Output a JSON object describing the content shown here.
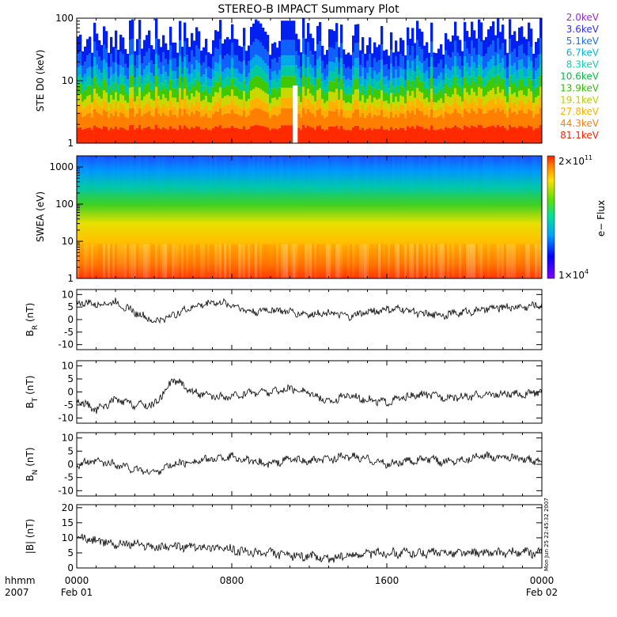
{
  "title": "STEREO-B IMPACT Summary Plot",
  "chart_data": [
    {
      "type": "heatmap",
      "id": "ste",
      "ylabel": "STE D0 (keV)",
      "yscale": "log",
      "ylim": [
        1,
        100
      ],
      "yticks": [
        "1",
        "10",
        "100"
      ],
      "legend": {
        "placement": "right",
        "entries": [
          {
            "label": "2.0keV",
            "color": "#a020f0"
          },
          {
            "label": "3.6keV",
            "color": "#3030ff"
          },
          {
            "label": "5.1keV",
            "color": "#1070ff"
          },
          {
            "label": "6.7keV",
            "color": "#00b8e0"
          },
          {
            "label": "8.3keV",
            "color": "#10d0b0"
          },
          {
            "label": "10.6keV",
            "color": "#00c040"
          },
          {
            "label": "13.9keV",
            "color": "#30c000"
          },
          {
            "label": "19.1keV",
            "color": "#b8d000"
          },
          {
            "label": "27.8keV",
            "color": "#ffb000"
          },
          {
            "label": "44.3keV",
            "color": "#ff8000"
          },
          {
            "label": "81.1keV",
            "color": "#ff2000"
          }
        ]
      }
    },
    {
      "type": "heatmap",
      "id": "swea",
      "ylabel": "SWEA (eV)",
      "yscale": "log",
      "ylim": [
        1,
        2000
      ],
      "yticks": [
        "1",
        "10",
        "100",
        "1000"
      ],
      "colorbar": {
        "label": "e− Flux",
        "max_label": "2×10",
        "max_exp": "11",
        "min_label": "1×10",
        "min_exp": "4"
      }
    },
    {
      "type": "line",
      "id": "br",
      "ylabel_main": "B",
      "ylabel_sub": "R",
      "ylabel_unit": " (nT)",
      "ylim": [
        -12,
        12
      ],
      "yticks": [
        "10",
        "5",
        "0",
        "-5",
        "-10"
      ],
      "ytick_values": [
        10,
        5,
        0,
        -5,
        -10
      ],
      "x_hours": [
        0,
        1,
        2,
        3,
        4,
        5,
        6,
        7,
        8,
        9,
        10,
        11,
        12,
        13,
        14,
        15,
        16,
        17,
        18,
        19,
        20,
        21,
        22,
        23,
        24
      ],
      "values": [
        7,
        6,
        7,
        3,
        -1,
        2,
        5,
        7,
        6,
        3,
        4,
        3,
        2,
        3,
        1,
        3,
        4,
        4,
        2,
        2,
        3,
        4,
        5,
        5,
        6
      ]
    },
    {
      "type": "line",
      "id": "bt",
      "ylabel_main": "B",
      "ylabel_sub": "T",
      "ylabel_unit": " (nT)",
      "ylim": [
        -12,
        12
      ],
      "yticks": [
        "10",
        "5",
        "0",
        "-5",
        "-10"
      ],
      "ytick_values": [
        10,
        5,
        0,
        -5,
        -10
      ],
      "x_hours": [
        0,
        1,
        2,
        3,
        4,
        5,
        6,
        7,
        8,
        9,
        10,
        11,
        12,
        13,
        14,
        15,
        16,
        17,
        18,
        19,
        20,
        21,
        22,
        23,
        24
      ],
      "values": [
        -3,
        -7,
        -3,
        -5,
        -5,
        5,
        0,
        -2,
        -2,
        0,
        0,
        1,
        0,
        -4,
        -1,
        -3,
        -4,
        -2,
        -1,
        -2,
        -2,
        -1,
        -1,
        -1,
        0
      ]
    },
    {
      "type": "line",
      "id": "bn",
      "ylabel_main": "B",
      "ylabel_sub": "N",
      "ylabel_unit": " (nT)",
      "ylim": [
        -12,
        12
      ],
      "yticks": [
        "10",
        "5",
        "0",
        "-5",
        "-10"
      ],
      "ytick_values": [
        10,
        5,
        0,
        -5,
        -10
      ],
      "x_hours": [
        0,
        1,
        2,
        3,
        4,
        5,
        6,
        7,
        8,
        9,
        10,
        11,
        12,
        13,
        14,
        15,
        16,
        17,
        18,
        19,
        20,
        21,
        22,
        23,
        24
      ],
      "values": [
        0,
        1,
        0,
        -2,
        -3,
        0,
        1,
        2,
        3,
        1,
        0,
        2,
        1,
        2,
        3,
        2,
        0,
        1,
        2,
        1,
        2,
        3,
        3,
        2,
        1
      ]
    },
    {
      "type": "line",
      "id": "bmag",
      "ylabel_main": "|B|",
      "ylabel_sub": "",
      "ylabel_unit": " (nT)",
      "ylim": [
        0,
        21
      ],
      "yticks": [
        "20",
        "15",
        "10",
        "5",
        "0"
      ],
      "ytick_values": [
        20,
        15,
        10,
        5,
        0
      ],
      "x_hours": [
        0,
        1,
        2,
        3,
        4,
        5,
        6,
        7,
        8,
        9,
        10,
        11,
        12,
        13,
        14,
        15,
        16,
        17,
        18,
        19,
        20,
        21,
        22,
        23,
        24
      ],
      "values": [
        10,
        9,
        8,
        8,
        7,
        7,
        7,
        7,
        6,
        5,
        5,
        4,
        4,
        3,
        4,
        5,
        5,
        5,
        5,
        5,
        5,
        5,
        5,
        5,
        5
      ]
    }
  ],
  "time_axis": {
    "label_line1": "hhmm",
    "label_line2": "2007",
    "ticks": [
      {
        "hhmm": "0000",
        "date": "Feb 01"
      },
      {
        "hhmm": "0800",
        "date": ""
      },
      {
        "hhmm": "1600",
        "date": ""
      },
      {
        "hhmm": "0000",
        "date": "Feb 02"
      }
    ]
  },
  "timestamp": "Mon Jun 25 22:45:32 2007"
}
